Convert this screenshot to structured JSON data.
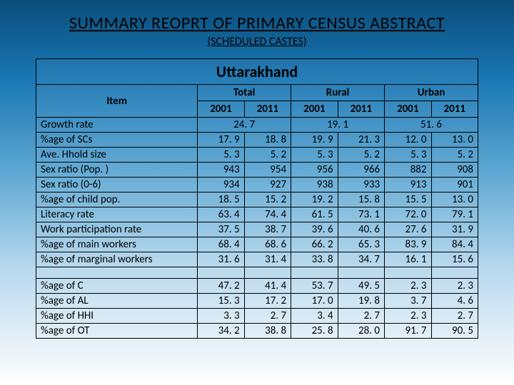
{
  "title": "SUMMARY REOPRT OF PRIMARY CENSUS ABSTRACT",
  "subtitle": "(SCHEDULED CASTES)",
  "state": "Uttarakhand",
  "headers": {
    "item": "Item",
    "groups": [
      "Total",
      "Rural",
      "Urban"
    ],
    "years": [
      "2001",
      "2011",
      "2001",
      "2011",
      "2001",
      "2011"
    ]
  },
  "growth_rate": {
    "label": "Growth rate",
    "total": "24. 7",
    "rural": "19. 1",
    "urban": "51. 6"
  },
  "block1": [
    {
      "label": "%age of SCs",
      "v": [
        "17. 9",
        "18. 8",
        "19. 9",
        "21. 3",
        "12. 0",
        "13. 0"
      ]
    },
    {
      "label": "Ave. Hhold size",
      "v": [
        "5. 3",
        "5. 2",
        "5. 3",
        "5. 2",
        "5. 3",
        "5. 2"
      ]
    },
    {
      "label": "Sex ratio (Pop. )",
      "v": [
        "943",
        "954",
        "956",
        "966",
        "882",
        "908"
      ]
    },
    {
      "label": "Sex ratio (0-6)",
      "v": [
        "934",
        "927",
        "938",
        "933",
        "913",
        "901"
      ]
    },
    {
      "label": "%age of child pop.",
      "v": [
        "18. 5",
        "15. 2",
        "19. 2",
        "15. 8",
        "15. 5",
        "13. 0"
      ]
    },
    {
      "label": "Literacy rate",
      "v": [
        "63. 4",
        "74. 4",
        "61. 5",
        "73. 1",
        "72. 0",
        "79. 1"
      ]
    },
    {
      "label": "Work participation rate",
      "v": [
        "37. 5",
        "38. 7",
        "39. 6",
        "40. 6",
        "27. 6",
        "31. 9"
      ]
    },
    {
      "label": "%age of main workers",
      "v": [
        "68. 4",
        "68. 6",
        "66. 2",
        "65. 3",
        "83. 9",
        "84. 4"
      ]
    },
    {
      "label": "%age of marginal workers",
      "v": [
        "31. 6",
        "31. 4",
        "33. 8",
        "34. 7",
        "16. 1",
        "15. 6"
      ]
    }
  ],
  "block2": [
    {
      "label": "%age of C",
      "v": [
        "47. 2",
        "41. 4",
        "53. 7",
        "49. 5",
        "2. 3",
        "2. 3"
      ]
    },
    {
      "label": "%age of AL",
      "v": [
        "15. 3",
        "17. 2",
        "17. 0",
        "19. 8",
        "3. 7",
        "4. 6"
      ]
    },
    {
      "label": "%age of HHI",
      "v": [
        "3. 3",
        "2. 7",
        "3. 4",
        "2. 7",
        "2. 3",
        "2. 7"
      ]
    },
    {
      "label": "%age of OT",
      "v": [
        "34. 2",
        "38. 8",
        "25. 8",
        "28. 0",
        "91. 7",
        "90. 5"
      ]
    }
  ],
  "colors": {
    "border": "#000000"
  }
}
